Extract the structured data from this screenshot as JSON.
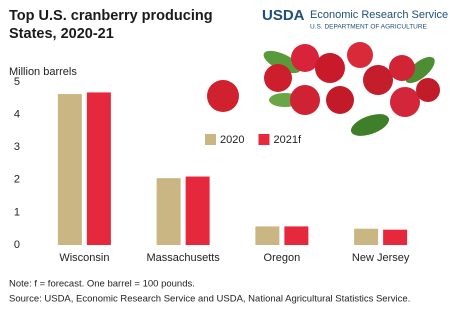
{
  "header": {
    "logo": "USDA",
    "agency": "Economic Research Service",
    "department": "U.S. DEPARTMENT OF AGRICULTURE"
  },
  "chart_data": {
    "type": "bar",
    "title": [
      "Top U.S. cranberry producing",
      "States, 2020-21"
    ],
    "y_label": "Million barrels",
    "categories": [
      "Wisconsin",
      "Massachusetts",
      "Oregon",
      "New Jersey"
    ],
    "series": [
      {
        "name": "2020",
        "color": "#c9b683",
        "values": [
          4.63,
          2.05,
          0.57,
          0.5
        ]
      },
      {
        "name": "2021f",
        "color": "#e6283c",
        "values": [
          4.68,
          2.1,
          0.57,
          0.47
        ]
      }
    ],
    "ylim": [
      0,
      5
    ],
    "yticks": [
      0,
      1,
      2,
      3,
      4,
      5
    ],
    "grid": false,
    "notes": [
      "Note: f = forecast. One barrel = 100 pounds.",
      "Source: USDA, Economic Research Service and USDA, National Agricultural Statistics Service."
    ]
  }
}
